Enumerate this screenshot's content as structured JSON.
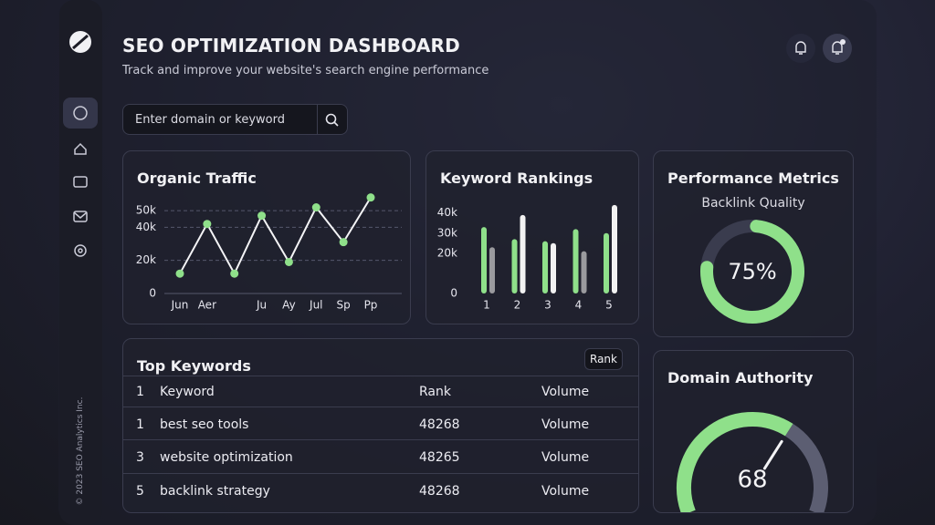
{
  "sidebar": {
    "footer": "© 2023 SEO Analytics Inc."
  },
  "header": {
    "title": "SEO OPTIMIZATION DASHBOARD",
    "subtitle": "Track and improve your website's search engine performance"
  },
  "search": {
    "placeholder": "Enter domain or keyword"
  },
  "organic_traffic": {
    "type": "line",
    "title": "Organic Traffic",
    "categories": [
      "Jun",
      "Aer",
      null,
      "Ju",
      "Ay",
      "Jul",
      "Sp",
      "Pp"
    ],
    "values": [
      12000,
      42000,
      12000,
      47000,
      19000,
      52000,
      31000,
      58000
    ],
    "color": "#8fe08a",
    "ylim": [
      0,
      60000
    ],
    "yticks": [
      0,
      {
        "value": 20000,
        "label": "20k"
      },
      {
        "value": 40000,
        "label": "40k"
      },
      {
        "value": 50000,
        "label": "50k"
      }
    ],
    "grid": true
  },
  "keyword_rankings": {
    "type": "bar",
    "title": "Keyword Rankings",
    "categories": [
      "1",
      "2",
      "3",
      "4",
      "5"
    ],
    "series": [
      {
        "color": "#8fe08a",
        "values": [
          33000,
          27000,
          26000,
          32000,
          30000
        ]
      },
      {
        "colors": [
          "#9a9a9e",
          "#f2f2f2",
          "#f2f2f2",
          "#9a9a9e",
          "#f2f2f2"
        ],
        "values": [
          23000,
          39000,
          25000,
          21000,
          44000
        ]
      }
    ],
    "ylim": [
      0,
      48000
    ],
    "yticks": [
      0,
      {
        "value": 20000,
        "label": "20k"
      },
      {
        "value": 30000,
        "label": "30k"
      },
      {
        "value": 40000,
        "label": "40k"
      }
    ],
    "grid": false
  },
  "performance": {
    "type": "donut",
    "title": "Performance Metrics",
    "subtitle": "Backlink Quality",
    "value": 75,
    "value_label": "75%",
    "max": 100,
    "color": "#8fe08a"
  },
  "top_keywords": {
    "title": "Top Keywords",
    "button": "Rank",
    "header": [
      "1",
      "Keyword",
      "Rank",
      "Volume"
    ],
    "rows": [
      [
        "1",
        "best seo tools",
        "48268",
        "Volume"
      ],
      [
        "3",
        "website optimization",
        "48265",
        "Volume"
      ],
      [
        "5",
        "backlink strategy",
        "48268",
        "Volume"
      ]
    ]
  },
  "domain_authority": {
    "type": "gauge",
    "title": "Domain Authority",
    "value": 68,
    "max": 100,
    "color": "#8fe08a"
  }
}
